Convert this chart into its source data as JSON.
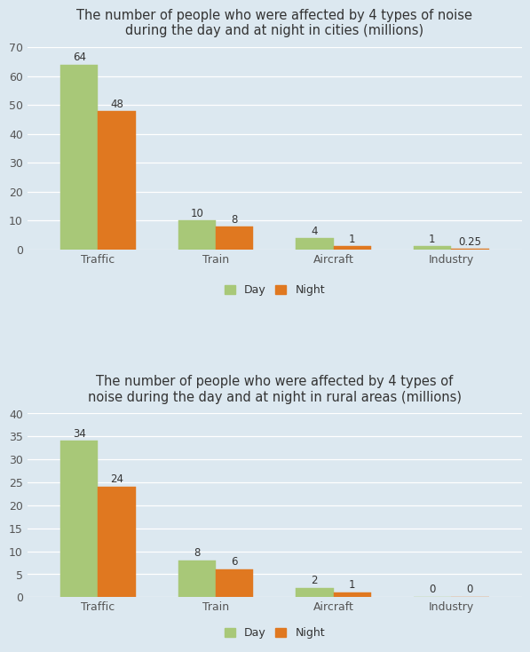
{
  "chart1": {
    "title": "The number of people who were affected by 4 types of noise\nduring the day and at night in cities (millions)",
    "categories": [
      "Traffic",
      "Train",
      "Aircraft",
      "Industry"
    ],
    "day_values": [
      64,
      10,
      4,
      1
    ],
    "night_values": [
      48,
      8,
      1,
      0.25
    ],
    "ylim": [
      0,
      70
    ],
    "yticks": [
      0,
      10,
      20,
      30,
      40,
      50,
      60,
      70
    ]
  },
  "chart2": {
    "title": "The number of people who were affected by 4 types of\nnoise during the day and at night in rural areas (millions)",
    "categories": [
      "Traffic",
      "Train",
      "Aircraft",
      "Industry"
    ],
    "day_values": [
      34,
      8,
      2,
      0
    ],
    "night_values": [
      24,
      6,
      1,
      0
    ],
    "ylim": [
      0,
      40
    ],
    "yticks": [
      0,
      5,
      10,
      15,
      20,
      25,
      30,
      35,
      40
    ]
  },
  "day_color": "#a8c878",
  "night_color": "#e07820",
  "background_color": "#dce8f0",
  "bar_width": 0.32,
  "title_fontsize": 10.5,
  "tick_fontsize": 9,
  "value_fontsize": 8.5,
  "legend_fontsize": 9
}
